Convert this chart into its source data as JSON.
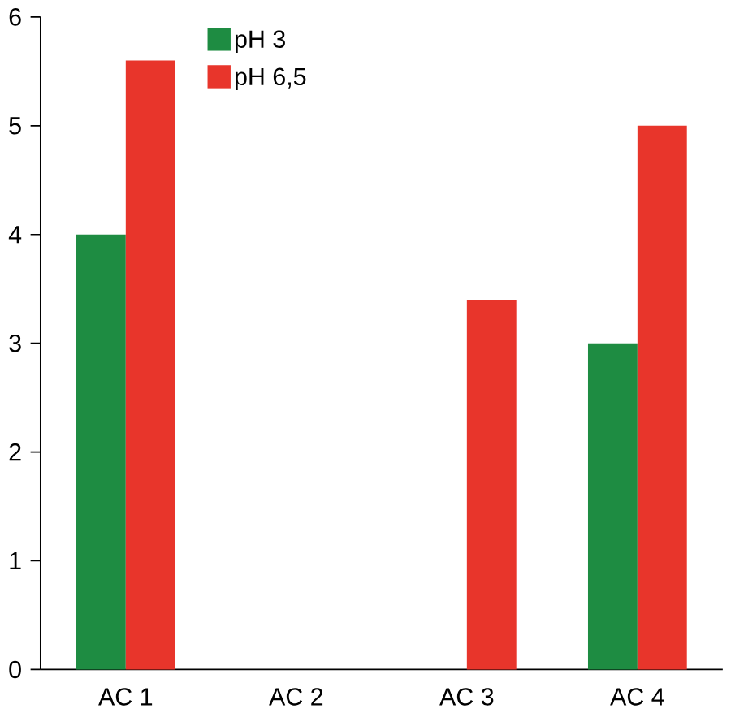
{
  "chart_data": {
    "type": "bar",
    "categories": [
      "AC 1",
      "AC 2",
      "AC 3",
      "AC 4"
    ],
    "series": [
      {
        "name": "pH 3",
        "color": "#1e8c42",
        "values": [
          4.0,
          0,
          0,
          3.0
        ]
      },
      {
        "name": "pH 6,5",
        "color": "#e8352b",
        "values": [
          5.6,
          0,
          3.4,
          5.0
        ]
      }
    ],
    "ylim": [
      0,
      6
    ],
    "yticks": [
      0,
      1,
      2,
      3,
      4,
      5,
      6
    ],
    "grid": false,
    "legend": "top"
  }
}
